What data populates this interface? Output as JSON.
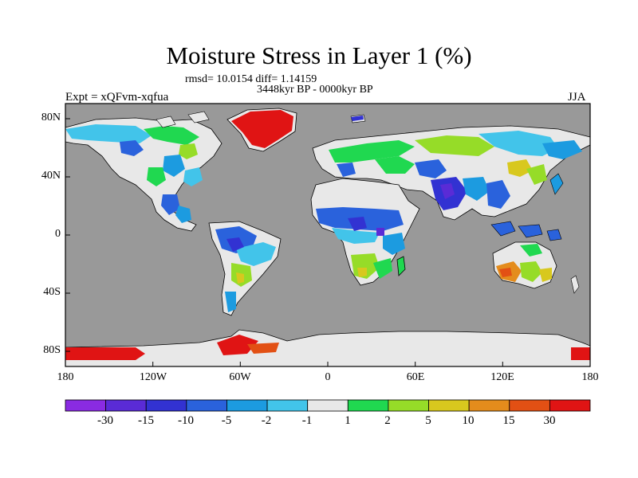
{
  "header": {
    "title": "Moisture Stress in Layer 1 (%)",
    "stats": "rmsd= 10.0154 diff= 1.14159",
    "period": "3448kyr BP - 0000kyr BP",
    "experiment": "Expt = xQFvm-xqfua",
    "season": "JJA"
  },
  "map": {
    "ocean_color": "#999999",
    "coastline_color": "#000000",
    "lon_ticks": [
      "180",
      "120W",
      "60W",
      "0",
      "60E",
      "120E",
      "180"
    ],
    "lat_ticks": [
      "80N",
      "40N",
      "0",
      "40S",
      "80S"
    ]
  },
  "colorbar": {
    "labels": [
      "-30",
      "-15",
      "-10",
      "-5",
      "-2",
      "-1",
      "1",
      "2",
      "5",
      "10",
      "15",
      "30"
    ],
    "colors": [
      "#8a2be2",
      "#5a2bd6",
      "#3232d2",
      "#2a62dc",
      "#1c9be0",
      "#42c4ea",
      "#e8e8e8",
      "#20d850",
      "#96dc28",
      "#d8c81e",
      "#e48c1c",
      "#e25014",
      "#e01414"
    ]
  }
}
